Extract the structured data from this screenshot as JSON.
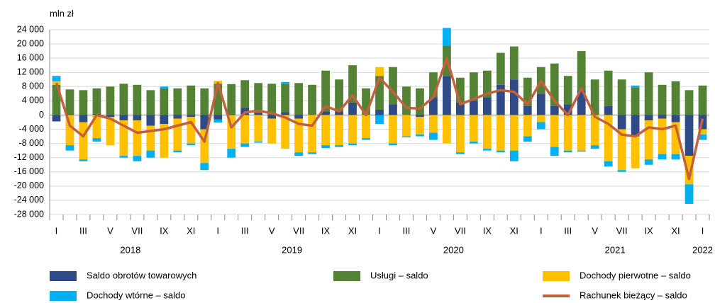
{
  "chart_data": {
    "type": "bar",
    "stacked": true,
    "y_label": "mln zł",
    "categories": [
      "I",
      null,
      "III",
      null,
      "V",
      null,
      "VII",
      null,
      "IX",
      null,
      "XI",
      null,
      "I",
      null,
      "III",
      null,
      "V",
      null,
      "VII",
      null,
      "IX",
      null,
      "XI",
      null,
      "I",
      null,
      "III",
      null,
      "V",
      null,
      "VII",
      null,
      "IX",
      null,
      "XI",
      null,
      "I",
      null,
      "III",
      null,
      "V",
      null,
      "VII",
      null,
      "IX",
      null,
      "XI",
      null,
      "I"
    ],
    "years": [
      "2018",
      "2019",
      "2020",
      "2021",
      "2022"
    ],
    "ylim": [
      -28000,
      24000
    ],
    "yticks": [
      {
        "value": 24000,
        "label": "24 000"
      },
      {
        "value": 20000,
        "label": "20 000"
      },
      {
        "value": 16000,
        "label": "16 000"
      },
      {
        "value": 12000,
        "label": "12 000"
      },
      {
        "value": 8000,
        "label": "8 000"
      },
      {
        "value": 4000,
        "label": "4 000"
      },
      0,
      {
        "value": -4000,
        "label": "-4 000"
      },
      {
        "value": -8000,
        "label": "-8 000"
      },
      {
        "value": -12000,
        "label": "-12 000"
      },
      {
        "value": -16000,
        "label": "-16 000"
      },
      {
        "value": -20000,
        "label": "-20 000"
      },
      {
        "value": -24000,
        "label": "-24 000"
      },
      {
        "value": -28000,
        "label": "-28 000"
      }
    ],
    "grid": true,
    "legend": "bottom",
    "series": [
      {
        "name": "Saldo obrotów towarowych",
        "type": "bar",
        "color": "#2e4a87",
        "values": [
          -1800,
          200,
          -2000,
          300,
          -500,
          -1500,
          -1500,
          -3000,
          -2500,
          -1000,
          -500,
          -4000,
          -1200,
          200,
          2000,
          500,
          -1000,
          800,
          -1000,
          0,
          1000,
          1000,
          3500,
          0,
          1500,
          3000,
          0,
          -500,
          5000,
          11000,
          3500,
          4000,
          5000,
          8500,
          10000,
          2500,
          6000,
          2500,
          3000,
          7000,
          0,
          2500,
          -4000,
          -6000,
          -1500,
          -1000,
          -2000,
          -11500,
          -4000
        ]
      },
      {
        "name": "Usługi – saldo",
        "type": "bar",
        "color": "#548235",
        "values": [
          8500,
          7000,
          7000,
          7200,
          8000,
          8800,
          8500,
          7000,
          7500,
          7500,
          8300,
          7500,
          8800,
          8500,
          7800,
          8500,
          8800,
          8000,
          9000,
          8500,
          11500,
          9000,
          10500,
          7500,
          9500,
          10500,
          8000,
          7500,
          7000,
          8500,
          7000,
          8000,
          7500,
          9000,
          9300,
          8000,
          7500,
          12000,
          8000,
          11000,
          10000,
          10000,
          10000,
          7800,
          12000,
          8500,
          9500,
          7000,
          8300
        ]
      },
      {
        "name": "Dochody pierwotne – saldo",
        "type": "bar",
        "color": "#ffc000",
        "values": [
          1000,
          -8500,
          -10500,
          -6500,
          -8000,
          -10000,
          -10000,
          -7000,
          -9500,
          -9000,
          -7500,
          -9500,
          800,
          -9500,
          -8000,
          -7500,
          -7000,
          -9500,
          -9500,
          -10500,
          -8500,
          -8500,
          -8000,
          -6500,
          2500,
          -8000,
          -6000,
          -5000,
          -5000,
          -8000,
          -10500,
          -7500,
          -9500,
          -10000,
          -10000,
          -6000,
          -2000,
          -9000,
          -10000,
          -10000,
          -8500,
          -13000,
          -11500,
          -9000,
          -11000,
          -10000,
          -9000,
          -8000,
          -1500
        ]
      },
      {
        "name": "Dochody wtórne – saldo",
        "type": "bar",
        "color": "#00b0f0",
        "values": [
          1500,
          -1500,
          -500,
          -1000,
          0,
          -500,
          -1500,
          -2000,
          500,
          -500,
          -500,
          -2000,
          -900,
          -2500,
          -1000,
          -300,
          0,
          500,
          -1000,
          -500,
          -800,
          -500,
          -500,
          -500,
          -2500,
          -500,
          -300,
          -500,
          -2000,
          5000,
          -500,
          -500,
          -500,
          -500,
          -3000,
          -1500,
          -2000,
          -2500,
          -500,
          -300,
          -1000,
          -1500,
          -500,
          500,
          -1500,
          -1500,
          -1500,
          -5500,
          -1500
        ]
      },
      {
        "name": "Rachunek bieżący – saldo",
        "type": "line",
        "color": "#c5603c",
        "values": [
          9000,
          -3000,
          -6000,
          0,
          -1000,
          -3000,
          -5000,
          -4500,
          -4000,
          -3000,
          -2000,
          -7500,
          9000,
          -3500,
          700,
          1200,
          500,
          -700,
          -2500,
          -3000,
          2500,
          1000,
          5500,
          0,
          10500,
          6500,
          2000,
          1800,
          5000,
          16000,
          3000,
          4500,
          6000,
          7000,
          6500,
          3000,
          9500,
          4000,
          0,
          7500,
          -500,
          -2500,
          -5500,
          -6000,
          -3500,
          -4000,
          -3000,
          -18000,
          -1000
        ]
      }
    ]
  }
}
